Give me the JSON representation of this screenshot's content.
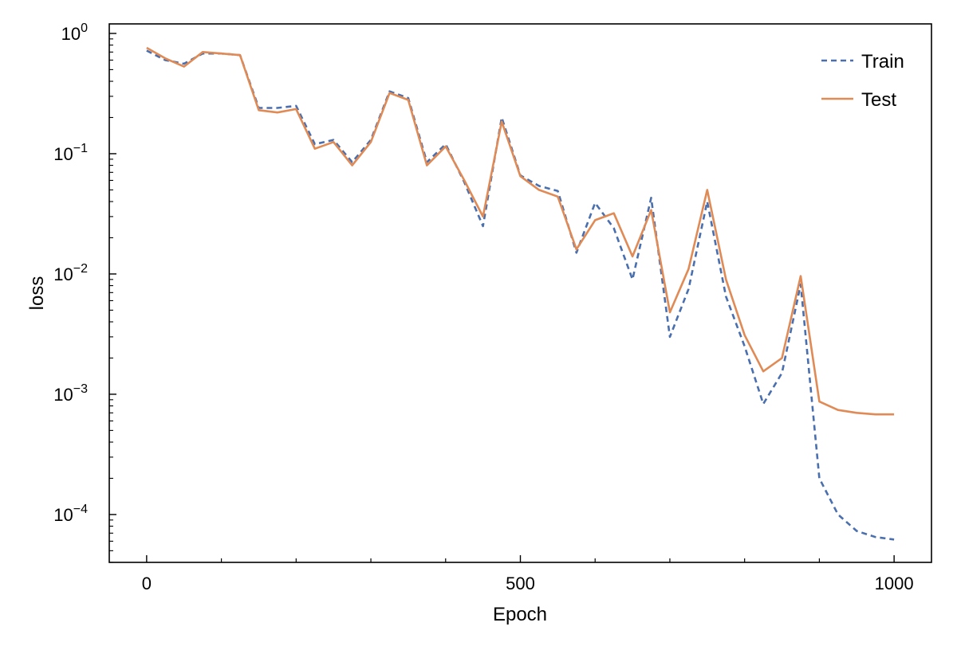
{
  "chart_data": {
    "type": "line",
    "title": "",
    "xlabel": "Epoch",
    "ylabel": "loss",
    "xlim": [
      -50,
      1050
    ],
    "ylim": [
      4e-05,
      1.2
    ],
    "yscale": "log",
    "grid": false,
    "legend_position": "top-right",
    "x_ticks": [
      0,
      500,
      1000
    ],
    "x_tick_labels": [
      "0",
      "500",
      "1000"
    ],
    "y_ticks": [
      1,
      0.1,
      0.01,
      0.001,
      0.0001
    ],
    "y_tick_labels": [
      {
        "base": "10",
        "exp": "0"
      },
      {
        "base": "10",
        "exp": "−1"
      },
      {
        "base": "10",
        "exp": "−2"
      },
      {
        "base": "10",
        "exp": "−3"
      },
      {
        "base": "10",
        "exp": "−4"
      }
    ],
    "series": [
      {
        "name": "Train",
        "color": "#4a6fae",
        "dash": "dashed",
        "x": [
          0,
          25,
          50,
          75,
          100,
          125,
          150,
          175,
          200,
          225,
          250,
          275,
          300,
          325,
          350,
          375,
          400,
          425,
          450,
          475,
          500,
          525,
          550,
          575,
          600,
          625,
          650,
          675,
          700,
          725,
          750,
          775,
          800,
          825,
          850,
          875,
          900,
          925,
          950,
          975,
          1000
        ],
        "values": [
          0.72,
          0.6,
          0.56,
          0.68,
          0.68,
          0.66,
          0.24,
          0.24,
          0.25,
          0.12,
          0.13,
          0.085,
          0.13,
          0.33,
          0.29,
          0.085,
          0.12,
          0.058,
          0.025,
          0.2,
          0.066,
          0.054,
          0.049,
          0.015,
          0.039,
          0.024,
          0.009,
          0.043,
          0.003,
          0.0075,
          0.04,
          0.0065,
          0.0025,
          0.00083,
          0.0015,
          0.0082,
          0.0002,
          0.0001,
          7.3e-05,
          6.5e-05,
          6.2e-05
        ]
      },
      {
        "name": "Test",
        "color": "#e08a55",
        "dash": "solid",
        "x": [
          0,
          25,
          50,
          75,
          100,
          125,
          150,
          175,
          200,
          225,
          250,
          275,
          300,
          325,
          350,
          375,
          400,
          425,
          450,
          475,
          500,
          525,
          550,
          575,
          600,
          625,
          650,
          675,
          700,
          725,
          750,
          775,
          800,
          825,
          850,
          875,
          900,
          925,
          950,
          975,
          1000
        ],
        "values": [
          0.76,
          0.62,
          0.53,
          0.7,
          0.68,
          0.66,
          0.23,
          0.22,
          0.235,
          0.11,
          0.125,
          0.08,
          0.125,
          0.32,
          0.28,
          0.08,
          0.115,
          0.06,
          0.03,
          0.185,
          0.065,
          0.05,
          0.044,
          0.016,
          0.028,
          0.032,
          0.014,
          0.034,
          0.0048,
          0.011,
          0.05,
          0.009,
          0.0031,
          0.00155,
          0.002,
          0.0096,
          0.00087,
          0.00074,
          0.0007,
          0.00068,
          0.00068
        ]
      }
    ]
  }
}
